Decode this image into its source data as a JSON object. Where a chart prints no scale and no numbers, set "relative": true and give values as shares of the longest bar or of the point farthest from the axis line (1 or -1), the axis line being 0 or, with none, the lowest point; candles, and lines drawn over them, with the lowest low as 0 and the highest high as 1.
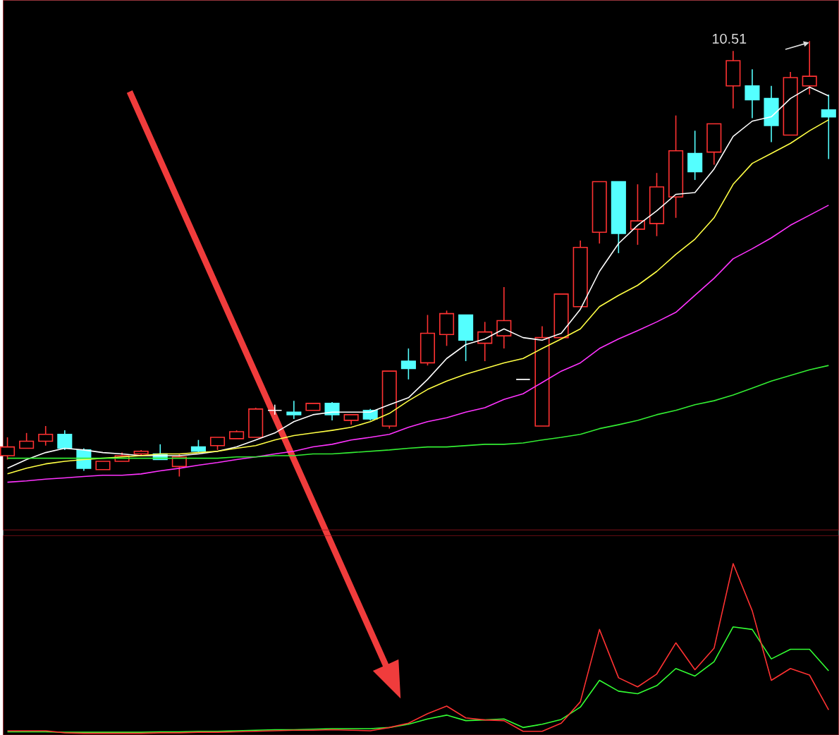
{
  "chart_data": [
    {
      "type": "candlestick",
      "relative": true,
      "categories": [
        null,
        null,
        null,
        null,
        null,
        null,
        null,
        null,
        null,
        null,
        null,
        null,
        null,
        null,
        null,
        null,
        null,
        null,
        null,
        null,
        null,
        null,
        null,
        null,
        null,
        null,
        null,
        null,
        null,
        null,
        null,
        null,
        null,
        null,
        null,
        null,
        null,
        null,
        null,
        null,
        null,
        null,
        null,
        null
      ],
      "ohlc": [
        [
          0.048,
          0.09,
          0.039,
          0.068
        ],
        [
          0.065,
          0.1,
          0.065,
          0.081
        ],
        [
          0.081,
          0.116,
          0.071,
          0.097
        ],
        [
          0.097,
          0.106,
          0.061,
          0.065
        ],
        [
          0.061,
          0.065,
          0.013,
          0.019
        ],
        [
          0.016,
          0.035,
          0.016,
          0.035
        ],
        [
          0.035,
          0.055,
          0.035,
          0.048
        ],
        [
          0.052,
          0.061,
          0.048,
          0.058
        ],
        [
          0.052,
          0.074,
          0.039,
          0.039
        ],
        [
          0.023,
          0.052,
          0.0,
          0.045
        ],
        [
          0.068,
          0.084,
          0.055,
          0.058
        ],
        [
          0.071,
          0.09,
          0.061,
          0.09
        ],
        [
          0.087,
          0.106,
          0.087,
          0.103
        ],
        [
          0.09,
          0.158,
          0.09,
          0.155
        ],
        [
          0.152,
          0.165,
          0.142,
          0.152
        ],
        [
          0.148,
          0.174,
          0.132,
          0.142
        ],
        [
          0.152,
          0.168,
          0.152,
          0.168
        ],
        [
          0.168,
          0.171,
          0.129,
          0.142
        ],
        [
          0.129,
          0.142,
          0.119,
          0.142
        ],
        [
          0.152,
          0.155,
          0.129,
          0.132
        ],
        [
          0.116,
          0.242,
          0.11,
          0.242
        ],
        [
          0.265,
          0.294,
          0.223,
          0.248
        ],
        [
          0.261,
          0.371,
          0.255,
          0.329
        ],
        [
          0.326,
          0.381,
          0.3,
          0.374
        ],
        [
          0.371,
          0.371,
          0.265,
          0.313
        ],
        [
          0.306,
          0.355,
          0.265,
          0.332
        ],
        [
          0.323,
          0.435,
          0.294,
          0.358
        ],
        [
          0.223,
          0.223,
          0.223,
          0.223
        ],
        [
          0.116,
          0.345,
          0.116,
          0.319
        ],
        [
          0.319,
          0.419,
          0.319,
          0.419
        ],
        [
          0.39,
          0.542,
          0.39,
          0.526
        ],
        [
          0.561,
          0.677,
          0.535,
          0.677
        ],
        [
          0.677,
          0.677,
          0.513,
          0.558
        ],
        [
          0.568,
          0.671,
          0.532,
          0.587
        ],
        [
          0.581,
          0.697,
          0.552,
          0.665
        ],
        [
          0.642,
          0.829,
          0.594,
          0.748
        ],
        [
          0.742,
          0.794,
          0.681,
          0.7
        ],
        [
          0.745,
          0.81,
          0.716,
          0.81
        ],
        [
          0.897,
          0.977,
          0.845,
          0.955
        ],
        [
          0.897,
          0.935,
          0.823,
          0.865
        ],
        [
          0.868,
          0.897,
          0.768,
          0.806
        ],
        [
          0.784,
          0.929,
          0.784,
          0.916
        ],
        [
          0.897,
          1.0,
          0.877,
          0.919
        ],
        [
          0.842,
          0.877,
          0.729,
          0.826
        ]
      ],
      "colors": [
        "#ff3232",
        "#ff3232",
        "#ff3232",
        "#54ffff",
        "#54ffff",
        "#ff3232",
        "#ff3232",
        "#ff3232",
        "#54ffff",
        "#ff3232",
        "#54ffff",
        "#ff3232",
        "#ff3232",
        "#ff3232",
        "#ffffff",
        "#54ffff",
        "#ff3232",
        "#54ffff",
        "#ff3232",
        "#54ffff",
        "#ff3232",
        "#54ffff",
        "#ff3232",
        "#ff3232",
        "#54ffff",
        "#ff3232",
        "#ff3232",
        "#ffffff",
        "#ff3232",
        "#ff3232",
        "#ff3232",
        "#ff3232",
        "#54ffff",
        "#ff3232",
        "#ff3232",
        "#ff3232",
        "#54ffff",
        "#ff3232",
        "#ff3232",
        "#54ffff",
        "#54ffff",
        "#ff3232",
        "#ff3232",
        "#54ffff"
      ],
      "series": [
        {
          "type": "line",
          "color": "#ffffff",
          "values": [
            0.019,
            0.039,
            0.055,
            0.065,
            0.061,
            0.055,
            0.052,
            0.048,
            0.048,
            0.048,
            0.052,
            0.058,
            0.068,
            0.084,
            0.1,
            0.126,
            0.142,
            0.148,
            0.148,
            0.148,
            0.165,
            0.181,
            0.223,
            0.271,
            0.303,
            0.316,
            0.339,
            0.319,
            0.313,
            0.329,
            0.384,
            0.471,
            0.535,
            0.577,
            0.61,
            0.648,
            0.652,
            0.706,
            0.781,
            0.816,
            0.826,
            0.868,
            0.894,
            0.874
          ]
        },
        {
          "type": "line",
          "color": "#ffff44",
          "values": [
            0.006,
            0.019,
            0.029,
            0.035,
            0.039,
            0.042,
            0.045,
            0.048,
            0.052,
            0.052,
            0.055,
            0.058,
            0.065,
            0.071,
            0.084,
            0.094,
            0.1,
            0.106,
            0.113,
            0.126,
            0.145,
            0.174,
            0.2,
            0.219,
            0.235,
            0.248,
            0.261,
            0.271,
            0.294,
            0.316,
            0.339,
            0.39,
            0.416,
            0.439,
            0.471,
            0.51,
            0.545,
            0.594,
            0.671,
            0.719,
            0.742,
            0.765,
            0.794,
            0.819
          ]
        },
        {
          "type": "line",
          "color": "#ff33ff",
          "values": [
            -0.013,
            -0.01,
            -0.006,
            -0.003,
            0.0,
            0.003,
            0.003,
            0.006,
            0.013,
            0.019,
            0.026,
            0.032,
            0.039,
            0.045,
            0.052,
            0.058,
            0.068,
            0.074,
            0.084,
            0.09,
            0.097,
            0.113,
            0.126,
            0.135,
            0.148,
            0.158,
            0.177,
            0.19,
            0.216,
            0.242,
            0.261,
            0.294,
            0.316,
            0.335,
            0.355,
            0.377,
            0.416,
            0.455,
            0.5,
            0.523,
            0.548,
            0.577,
            0.6,
            0.623
          ]
        },
        {
          "type": "line",
          "color": "#33ee33",
          "values": [
            0.042,
            0.042,
            0.042,
            0.042,
            0.042,
            0.042,
            0.042,
            0.042,
            0.042,
            0.042,
            0.042,
            0.042,
            0.045,
            0.045,
            0.048,
            0.048,
            0.052,
            0.052,
            0.055,
            0.058,
            0.061,
            0.065,
            0.068,
            0.068,
            0.071,
            0.074,
            0.074,
            0.077,
            0.084,
            0.09,
            0.097,
            0.11,
            0.119,
            0.129,
            0.142,
            0.152,
            0.165,
            0.174,
            0.187,
            0.203,
            0.219,
            0.232,
            0.245,
            0.255
          ]
        }
      ],
      "annotations": [
        "10.51"
      ]
    },
    {
      "type": "line",
      "relative": true,
      "categories": [
        null,
        null,
        null,
        null,
        null,
        null,
        null,
        null,
        null,
        null,
        null,
        null,
        null,
        null,
        null,
        null,
        null,
        null,
        null,
        null,
        null,
        null,
        null,
        null,
        null,
        null,
        null,
        null,
        null,
        null,
        null,
        null,
        null,
        null,
        null,
        null,
        null,
        null,
        null,
        null,
        null,
        null,
        null,
        null
      ],
      "series": [
        {
          "color": "#33ff33",
          "values": [
            0.019,
            0.019,
            0.019,
            0.016,
            0.016,
            0.016,
            0.016,
            0.016,
            0.019,
            0.019,
            0.022,
            0.022,
            0.025,
            0.028,
            0.031,
            0.031,
            0.034,
            0.037,
            0.037,
            0.037,
            0.044,
            0.063,
            0.094,
            0.116,
            0.084,
            0.088,
            0.094,
            0.044,
            0.063,
            0.091,
            0.163,
            0.319,
            0.256,
            0.241,
            0.288,
            0.388,
            0.344,
            0.428,
            0.631,
            0.616,
            0.444,
            0.5,
            0.5,
            0.375
          ]
        },
        {
          "color": "#ff3232",
          "values": [
            0.025,
            0.025,
            0.025,
            0.013,
            0.01,
            0.01,
            0.01,
            0.01,
            0.013,
            0.013,
            0.016,
            0.016,
            0.019,
            0.022,
            0.025,
            0.028,
            0.028,
            0.031,
            0.028,
            0.025,
            0.044,
            0.069,
            0.125,
            0.169,
            0.1,
            0.088,
            0.084,
            0.022,
            0.022,
            0.069,
            0.194,
            0.616,
            0.334,
            0.281,
            0.356,
            0.538,
            0.381,
            0.506,
            1.0,
            0.725,
            0.319,
            0.388,
            0.35,
            0.147
          ]
        }
      ]
    }
  ]
}
